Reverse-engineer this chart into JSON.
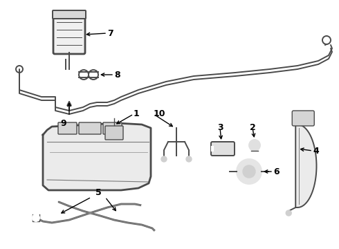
{
  "background_color": "#ffffff",
  "line_color": "#4a4a4a",
  "label_color": "#000000",
  "figsize": [
    4.9,
    3.6
  ],
  "dpi": 100,
  "lw_thin": 1.0,
  "lw_med": 1.4,
  "lw_thick": 2.0
}
